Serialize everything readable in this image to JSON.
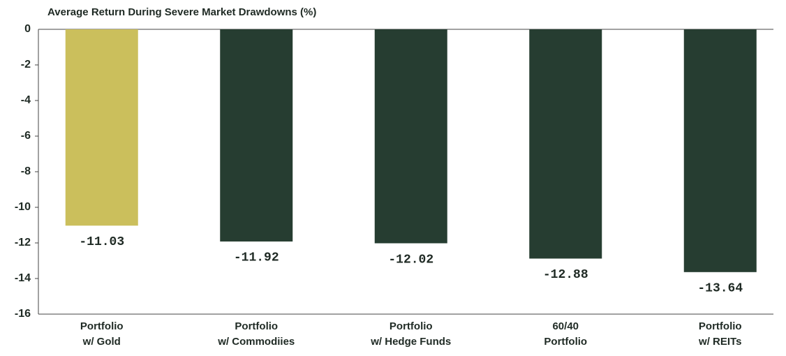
{
  "chart_data": {
    "type": "bar",
    "title": "Average Return During Severe Market Drawdowns (%)",
    "categories": [
      [
        "Portfolio",
        "w/ Gold"
      ],
      [
        "Portfolio",
        "w/ Commodiies"
      ],
      [
        "Portfolio",
        "w/ Hedge Funds"
      ],
      [
        "60/40",
        "Portfolio"
      ],
      [
        "Portfolio",
        "w/ REITs"
      ]
    ],
    "values": [
      -11.03,
      -11.92,
      -12.02,
      -12.88,
      -13.64
    ],
    "colors": [
      "#cbbf5c",
      "#263d31",
      "#263d31",
      "#263d31",
      "#263d31"
    ],
    "ylim": [
      -16,
      0
    ],
    "yticks": [
      0,
      -2,
      -4,
      -6,
      -8,
      -10,
      -12,
      -14,
      -16
    ]
  }
}
